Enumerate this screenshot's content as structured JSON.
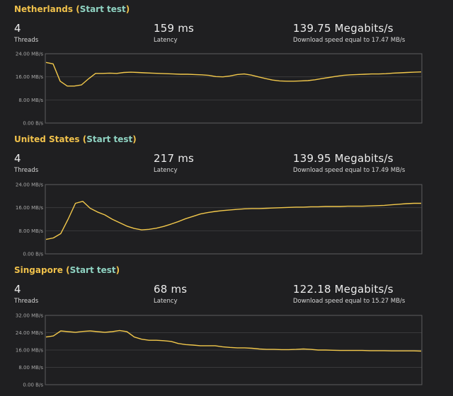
{
  "colors": {
    "header": "#f0c14b",
    "link": "#8fd3c2",
    "line": "#f2c84b",
    "background": "#1f1f21"
  },
  "tests": [
    {
      "location": "Netherlands",
      "start_label": "Start test",
      "threads": {
        "value": "4",
        "label": "Threads"
      },
      "latency": {
        "value": "159 ms",
        "label": "Latency"
      },
      "speed": {
        "value": "139.75 Megabits/s",
        "label": "Download speed equal to 17.47 MB/s"
      }
    },
    {
      "location": "United States",
      "start_label": "Start test",
      "threads": {
        "value": "4",
        "label": "Threads"
      },
      "latency": {
        "value": "217 ms",
        "label": "Latency"
      },
      "speed": {
        "value": "139.95 Megabits/s",
        "label": "Download speed equal to 17.49 MB/s"
      }
    },
    {
      "location": "Singapore",
      "start_label": "Start test",
      "threads": {
        "value": "4",
        "label": "Threads"
      },
      "latency": {
        "value": "68 ms",
        "label": "Latency"
      },
      "speed": {
        "value": "122.18 Megabits/s",
        "label": "Download speed equal to 15.27 MB/s"
      }
    }
  ],
  "chart_data": [
    {
      "type": "line",
      "ylim": [
        0,
        24
      ],
      "yticks": [
        0,
        8,
        16,
        24
      ],
      "ytick_labels": [
        "0.00 B/s",
        "8.00 MB/s",
        "16.00 MB/s",
        "24.00 MB/s"
      ],
      "grid": true,
      "series": [
        {
          "values": [
            21,
            20.5,
            14.5,
            12.8,
            12.8,
            13.2,
            15.3,
            17.2,
            17.2,
            17.3,
            17.2,
            17.5,
            17.6,
            17.5,
            17.4,
            17.3,
            17.2,
            17.1,
            17.0,
            16.9,
            16.9,
            16.8,
            16.7,
            16.5,
            16.1,
            16.0,
            16.3,
            16.8,
            17.0,
            16.6,
            16.0,
            15.4,
            14.9,
            14.6,
            14.5,
            14.5,
            14.6,
            14.7,
            15.0,
            15.4,
            15.8,
            16.2,
            16.5,
            16.7,
            16.8,
            16.9,
            17.0,
            17.0,
            17.1,
            17.3,
            17.4,
            17.5,
            17.6,
            17.7
          ]
        }
      ]
    },
    {
      "type": "line",
      "ylim": [
        0,
        24
      ],
      "yticks": [
        0,
        8,
        16,
        24
      ],
      "ytick_labels": [
        "0.00 B/s",
        "8.00 MB/s",
        "16.00 MB/s",
        "24.00 MB/s"
      ],
      "grid": true,
      "series": [
        {
          "values": [
            5,
            5.5,
            7,
            12,
            17.5,
            18.2,
            15.8,
            14.5,
            13.5,
            12,
            10.8,
            9.6,
            8.8,
            8.3,
            8.5,
            8.9,
            9.5,
            10.3,
            11.2,
            12.2,
            13.0,
            13.8,
            14.3,
            14.7,
            15.0,
            15.2,
            15.4,
            15.6,
            15.7,
            15.7,
            15.8,
            15.9,
            16.0,
            16.1,
            16.2,
            16.2,
            16.3,
            16.3,
            16.4,
            16.4,
            16.4,
            16.5,
            16.5,
            16.5,
            16.6,
            16.7,
            16.8,
            17.0,
            17.2,
            17.4,
            17.5,
            17.5
          ]
        }
      ]
    },
    {
      "type": "line",
      "ylim": [
        0,
        32
      ],
      "yticks": [
        0,
        8,
        16,
        24,
        32
      ],
      "ytick_labels": [
        "0.00 B/s",
        "8.00 MB/s",
        "16.00 MB/s",
        "24.00 MB/s",
        "32.00 MB/s"
      ],
      "grid": true,
      "series": [
        {
          "values": [
            22,
            22.5,
            24.8,
            24.5,
            24.2,
            24.6,
            24.8,
            24.5,
            24.2,
            24.5,
            25.0,
            24.5,
            22.0,
            21.0,
            20.5,
            20.5,
            20.3,
            20.0,
            19.0,
            18.5,
            18.3,
            18.0,
            18.0,
            18.0,
            17.5,
            17.2,
            17.0,
            17.0,
            16.8,
            16.5,
            16.3,
            16.3,
            16.2,
            16.2,
            16.3,
            16.5,
            16.3,
            16.0,
            16.0,
            15.9,
            15.8,
            15.8,
            15.8,
            15.8,
            15.7,
            15.7,
            15.7,
            15.6,
            15.6,
            15.6,
            15.6,
            15.5
          ]
        }
      ]
    }
  ]
}
